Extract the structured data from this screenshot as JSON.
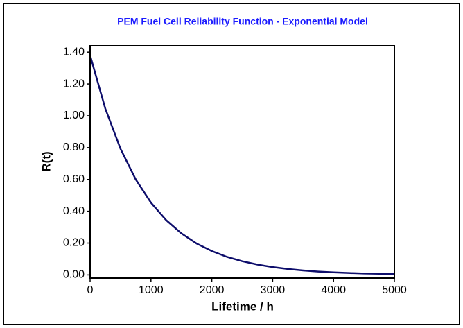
{
  "chart_data": {
    "type": "line",
    "title": "PEM Fuel Cell Reliability Function - Exponential Model",
    "x_label": "Lifetime / h",
    "y_label": "R(t)",
    "x": [
      0,
      250,
      500,
      750,
      1000,
      1250,
      1500,
      1750,
      2000,
      2250,
      2500,
      2750,
      3000,
      3250,
      3500,
      3750,
      4000,
      4250,
      4500,
      4750,
      5000
    ],
    "series": [
      {
        "name": "R(t)",
        "color": "#0d0d6b",
        "values": [
          1.38,
          1.045,
          0.792,
          0.6,
          0.454,
          0.344,
          0.261,
          0.197,
          0.15,
          0.113,
          0.086,
          0.065,
          0.049,
          0.037,
          0.028,
          0.021,
          0.016,
          0.012,
          0.009,
          0.007,
          0.005
        ]
      }
    ],
    "xlim": [
      0,
      5000
    ],
    "xticks": [
      0,
      1000,
      2000,
      3000,
      4000,
      5000
    ],
    "ylim": [
      -0.02,
      1.44
    ],
    "yticks": [
      {
        "value": 0,
        "label": "0.00"
      },
      {
        "value": 0.2,
        "label": "0.20"
      },
      {
        "value": 0.4,
        "label": "0.40"
      },
      {
        "value": 0.6,
        "label": "0.60"
      },
      {
        "value": 0.8,
        "label": "0.80"
      },
      {
        "value": 1.0,
        "label": "1.00"
      },
      {
        "value": 1.2,
        "label": "1.20"
      },
      {
        "value": 1.4,
        "label": "1.40"
      }
    ],
    "grid": false
  }
}
